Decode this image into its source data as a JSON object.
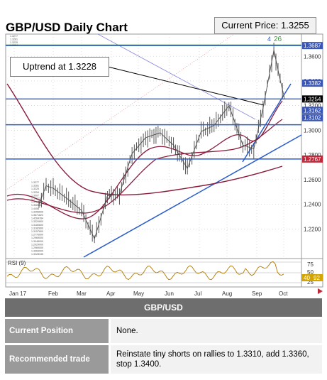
{
  "header": {
    "title": "GBP/USD Daily Chart",
    "current_price": "Current Price: 1.3255"
  },
  "annotation": {
    "uptrend_label": "Uptrend at 1.3228"
  },
  "chart_data": {
    "type": "line",
    "title": "GBP/USD Daily Chart",
    "x_ticks": [
      "Jan 17",
      "Feb",
      "Mar",
      "Apr",
      "May",
      "Jun",
      "Jul",
      "Aug",
      "Sep",
      "Oct"
    ],
    "y_ticks": [
      "1.3600",
      "1.3400",
      "1.3200",
      "1.3000",
      "1.2800",
      "1.2600",
      "1.2400",
      "1.2200"
    ],
    "ylim": [
      1.196,
      1.378
    ],
    "price_series": [
      {
        "x": "Jan 17",
        "y": 1.24
      },
      {
        "x": "Jan 24",
        "y": 1.255
      },
      {
        "x": "Feb 01",
        "y": 1.253
      },
      {
        "x": "Feb 15",
        "y": 1.245
      },
      {
        "x": "Mar 01",
        "y": 1.235
      },
      {
        "x": "Mar 14",
        "y": 1.212
      },
      {
        "x": "Mar 27",
        "y": 1.247
      },
      {
        "x": "Apr 10",
        "y": 1.248
      },
      {
        "x": "Apr 24",
        "y": 1.281
      },
      {
        "x": "May 08",
        "y": 1.294
      },
      {
        "x": "May 22",
        "y": 1.298
      },
      {
        "x": "Jun 05",
        "y": 1.288
      },
      {
        "x": "Jun 19",
        "y": 1.269
      },
      {
        "x": "Jul 03",
        "y": 1.299
      },
      {
        "x": "Jul 17",
        "y": 1.304
      },
      {
        "x": "Aug 03",
        "y": 1.32
      },
      {
        "x": "Aug 17",
        "y": 1.288
      },
      {
        "x": "Aug 28",
        "y": 1.285
      },
      {
        "x": "Sep 08",
        "y": 1.318
      },
      {
        "x": "Sep 20",
        "y": 1.365
      },
      {
        "x": "Sep 27",
        "y": 1.341
      },
      {
        "x": "Oct 02",
        "y": 1.3255
      }
    ],
    "price_labels": [
      {
        "text": "1.3687",
        "y": 1.3687,
        "color": "#3a56b5"
      },
      {
        "text": "1.3382",
        "y": 1.3382,
        "color": "#3a56b5"
      },
      {
        "text": "1.3254",
        "y": 1.3254,
        "color": "#000000"
      },
      {
        "text": "1.3162",
        "y": 1.3162,
        "color": "#3a56b5"
      },
      {
        "text": "1.3102",
        "y": 1.3102,
        "color": "#3a56b5"
      },
      {
        "text": "1.2767",
        "y": 1.2767,
        "color": "#c0283a"
      }
    ],
    "horizontal_levels": [
      1.3687,
      1.3254,
      1.3045,
      1.2767
    ],
    "rsi": {
      "label": "RSI (9)",
      "levels": [
        "75",
        "50",
        "25"
      ],
      "current": [
        "40",
        "92"
      ]
    },
    "peak_labels": [
      "4",
      "26"
    ],
    "legend_values": [
      "1.3277",
      "1.3281",
      "1.3225",
      "1.3254",
      "1.3007",
      "1.372722",
      "1.376723",
      "1.336163",
      "1.4458",
      "1.3256606",
      "1.3671822",
      "1.4264784",
      "1.3320800",
      "1.3180600",
      "1.3182800",
      "1.3157800",
      "1.2776000",
      "1.2969000",
      "1.3048000",
      "1.2929000",
      "1.2969000",
      "1.3963000",
      "1.3228345"
    ]
  },
  "table": {
    "header": "GBP/USD",
    "rows": [
      {
        "label": "Current Position",
        "value": "None."
      },
      {
        "label": "Recommended trade",
        "value": "Reinstate tiny shorts on rallies to 1.3310, add 1.3360, stop 1.3400."
      }
    ]
  }
}
